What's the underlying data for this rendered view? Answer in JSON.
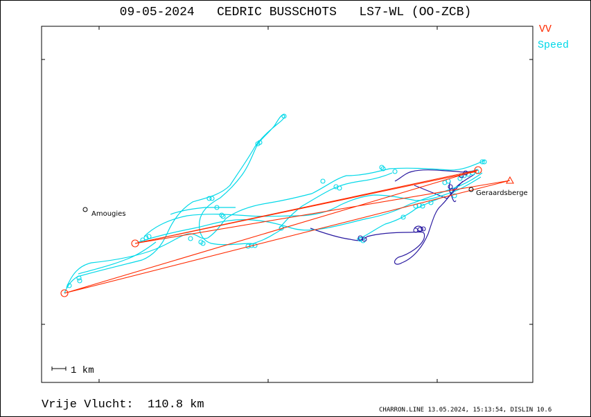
{
  "header": {
    "title": "09-05-2024   CEDRIC BUSSCHOTS   LS7-WL (OO-ZCB)"
  },
  "legend": {
    "vv_label": "VV",
    "vv_color": "#ff2a00",
    "speed_label": "Speed",
    "speed_color": "#00d8e8",
    "slow_track_color": "#2a1aa0"
  },
  "map": {
    "places": [
      {
        "name": "Amougies"
      },
      {
        "name": "Geraardsberge"
      }
    ],
    "scale_bar_label": "1 km"
  },
  "summary": {
    "distance_text": "Vrije Vlucht:  110.8 km"
  },
  "footer": {
    "text": "CHARRON.LINE 13.05.2024, 15:13:54, DISLIN 10.6"
  }
}
